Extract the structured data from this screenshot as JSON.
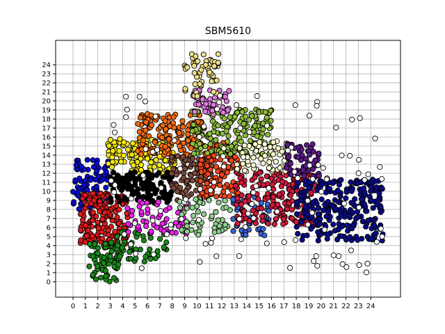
{
  "chart_data": {
    "type": "scatter",
    "title": "SBM5610",
    "xlabel": "",
    "ylabel": "",
    "xlim": [
      -1.4,
      26.4
    ],
    "ylim": [
      -1.7,
      26.7
    ],
    "x_ticks": [
      "0",
      "1",
      "2",
      "3",
      "4",
      "5",
      "6",
      "7",
      "8",
      "9",
      "10",
      "11",
      "12",
      "13",
      "14",
      "15",
      "16",
      "17",
      "18",
      "19",
      "20",
      "21",
      "22",
      "23",
      "24"
    ],
    "y_ticks": [
      "0",
      "1",
      "2",
      "3",
      "4",
      "5",
      "6",
      "7",
      "8",
      "9",
      "10",
      "11",
      "12",
      "13",
      "14",
      "15",
      "16",
      "17",
      "18",
      "19",
      "20",
      "21",
      "22",
      "23",
      "24"
    ],
    "grid": true,
    "clusters": [
      {
        "color": "#0a0ad0",
        "x": [
          0,
          2.9
        ],
        "y": [
          8.0,
          13.5
        ],
        "count": 90
      },
      {
        "color": "#e01a1a",
        "x": [
          0.6,
          4.4
        ],
        "y": [
          4.2,
          9.8
        ],
        "count": 170
      },
      {
        "color": "#1a8a1a",
        "x": [
          1.3,
          3.7
        ],
        "y": [
          0.0,
          4.4
        ],
        "count": 80
      },
      {
        "color": "#1a8a1a",
        "x": [
          3.5,
          7.6
        ],
        "y": [
          2.2,
          5.6
        ],
        "count": 45
      },
      {
        "color": "#f5e814",
        "x": [
          2.8,
          8.2
        ],
        "y": [
          12.0,
          15.8
        ],
        "count": 140
      },
      {
        "color": "#000000",
        "x": [
          3.0,
          8.0
        ],
        "y": [
          8.7,
          12.2
        ],
        "count": 140
      },
      {
        "color": "#ee22ee",
        "x": [
          4.3,
          9.3
        ],
        "y": [
          5.3,
          9.0
        ],
        "count": 60
      },
      {
        "color": "#f36a0f",
        "x": [
          5.2,
          10.4
        ],
        "y": [
          14.0,
          18.6
        ],
        "count": 150
      },
      {
        "color": "#7a4a3a",
        "x": [
          7.9,
          11.2
        ],
        "y": [
          9.0,
          14.0
        ],
        "count": 90
      },
      {
        "color": "#f5461a",
        "x": [
          10.2,
          13.6
        ],
        "y": [
          9.3,
          15.5
        ],
        "count": 120
      },
      {
        "color": "#8dbb3b",
        "x": [
          9.6,
          16.2
        ],
        "y": [
          14.0,
          19.2
        ],
        "count": 190
      },
      {
        "color": "#e07ae0",
        "x": [
          9.6,
          12.6
        ],
        "y": [
          18.5,
          21.2
        ],
        "count": 50
      },
      {
        "color": "#eede8a",
        "x": [
          9.0,
          12.0
        ],
        "y": [
          20.5,
          25.2
        ],
        "count": 55
      },
      {
        "color": "#90d090",
        "x": [
          8.6,
          12.8
        ],
        "y": [
          5.0,
          9.2
        ],
        "count": 55
      },
      {
        "color": "#3a62d8",
        "x": [
          12.9,
          15.8
        ],
        "y": [
          5.0,
          9.5
        ],
        "count": 45
      },
      {
        "color": "#d01a3c",
        "x": [
          13.0,
          19.6
        ],
        "y": [
          6.3,
          12.3
        ],
        "count": 200
      },
      {
        "color": "#fcfad0",
        "x": [
          13.2,
          17.4
        ],
        "y": [
          12.2,
          15.6
        ],
        "count": 70
      },
      {
        "color": "#5c1a8a",
        "x": [
          17.2,
          19.9
        ],
        "y": [
          11.4,
          15.3
        ],
        "count": 60
      },
      {
        "color": "#0a0a8a",
        "x": [
          18.0,
          25.0
        ],
        "y": [
          4.5,
          11.3
        ],
        "count": 260
      },
      {
        "color": "#ffffff",
        "x": [
          3.0,
          25.0
        ],
        "y": [
          1.0,
          21.0
        ],
        "count": 120
      }
    ]
  }
}
